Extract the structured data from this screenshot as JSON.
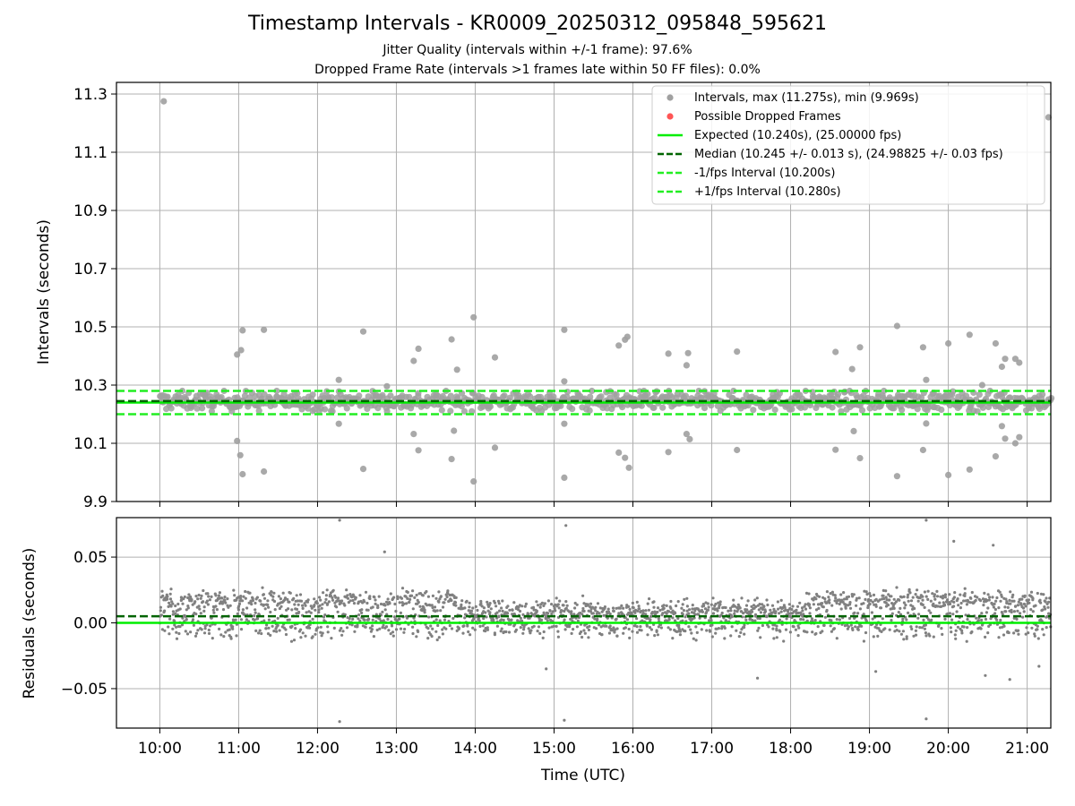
{
  "header": {
    "title": "Timestamp Intervals - KR0009_20250312_095848_595621",
    "subtitle_1": "Jitter Quality (intervals within +/-1 frame): 97.6%",
    "subtitle_2": "Dropped Frame Rate (intervals >1 frames late within 50 FF files): 0.0%"
  },
  "colors": {
    "point_gray": "#a0a0a0",
    "residual_gray": "#808080",
    "dropped_red": "#ff5555",
    "expected_green": "#00ee00",
    "median_darkgreen": "#006400",
    "interval_green": "#22ee22",
    "grid": "#b0b0b0"
  },
  "chart_data": [
    {
      "type": "scatter",
      "name": "intervals-panel",
      "ylabel": "Intervals (seconds)",
      "xlabel": "",
      "xlim_hours": [
        9.45,
        21.3
      ],
      "ylim": [
        9.9,
        11.34
      ],
      "y_ticks": [
        "11.3",
        "11.1",
        "10.9",
        "10.7",
        "10.5",
        "10.3",
        "10.1",
        "9.9"
      ],
      "y_tick_values": [
        11.3,
        11.1,
        10.9,
        10.7,
        10.5,
        10.3,
        10.1,
        9.9
      ],
      "grid": true,
      "legend_position": "top-right",
      "legend": [
        {
          "label": "Intervals, max (11.275s), min (9.969s)",
          "kind": "marker",
          "color": "#a0a0a0"
        },
        {
          "label": "Possible Dropped Frames",
          "kind": "marker",
          "color": "#ff5555"
        },
        {
          "label": "Expected (10.240s), (25.00000 fps)",
          "kind": "solid",
          "color": "#00ee00"
        },
        {
          "label": "Median (10.245 +/- 0.013 s), (24.98825 +/- 0.03 fps)",
          "kind": "dashed",
          "color": "#006400"
        },
        {
          "label": "-1/fps Interval (10.200s)",
          "kind": "dashed",
          "color": "#22ee22"
        },
        {
          "label": "+1/fps Interval (10.280s)",
          "kind": "dashed",
          "color": "#22ee22"
        }
      ],
      "reference_lines": [
        {
          "name": "expected",
          "y": 10.24,
          "style": "solid",
          "color": "#00ee00"
        },
        {
          "name": "median",
          "y": 10.245,
          "style": "dashed",
          "color": "#006400"
        },
        {
          "name": "minus-1fps",
          "y": 10.2,
          "style": "dashed",
          "color": "#22ee22"
        },
        {
          "name": "plus-1fps",
          "y": 10.28,
          "style": "dashed",
          "color": "#22ee22"
        }
      ],
      "series": [
        {
          "name": "Intervals",
          "color": "#a0a0a0",
          "band": {
            "x_start": 10.0,
            "x_end": 21.3,
            "y_center": 10.245,
            "y_spread": 0.035
          },
          "outliers": [
            [
              10.05,
              11.275
            ],
            [
              10.98,
              10.405
            ],
            [
              11.03,
              10.42
            ],
            [
              11.05,
              10.488
            ],
            [
              10.98,
              10.108
            ],
            [
              11.02,
              10.059
            ],
            [
              11.05,
              9.994
            ],
            [
              11.32,
              10.49
            ],
            [
              11.32,
              10.003
            ],
            [
              12.27,
              10.318
            ],
            [
              12.27,
              10.167
            ],
            [
              12.58,
              10.484
            ],
            [
              12.58,
              10.012
            ],
            [
              12.88,
              10.296
            ],
            [
              13.22,
              10.383
            ],
            [
              13.28,
              10.425
            ],
            [
              13.22,
              10.132
            ],
            [
              13.28,
              10.076
            ],
            [
              13.7,
              10.457
            ],
            [
              13.77,
              10.353
            ],
            [
              13.73,
              10.143
            ],
            [
              13.7,
              10.046
            ],
            [
              13.98,
              10.533
            ],
            [
              13.98,
              9.969
            ],
            [
              14.25,
              10.395
            ],
            [
              14.25,
              10.085
            ],
            [
              15.13,
              10.49
            ],
            [
              15.13,
              10.313
            ],
            [
              15.13,
              10.167
            ],
            [
              15.13,
              9.982
            ],
            [
              15.82,
              10.436
            ],
            [
              15.9,
              10.456
            ],
            [
              15.93,
              10.466
            ],
            [
              15.82,
              10.068
            ],
            [
              15.9,
              10.05
            ],
            [
              15.95,
              10.016
            ],
            [
              16.45,
              10.408
            ],
            [
              16.45,
              10.07
            ],
            [
              16.68,
              10.368
            ],
            [
              16.7,
              10.41
            ],
            [
              16.68,
              10.132
            ],
            [
              16.72,
              10.114
            ],
            [
              17.32,
              10.415
            ],
            [
              17.32,
              10.077
            ],
            [
              18.57,
              10.414
            ],
            [
              18.57,
              10.078
            ],
            [
              18.78,
              10.355
            ],
            [
              18.8,
              10.142
            ],
            [
              18.88,
              10.43
            ],
            [
              18.88,
              10.049
            ],
            [
              19.35,
              10.503
            ],
            [
              19.35,
              9.987
            ],
            [
              19.68,
              10.43
            ],
            [
              19.72,
              10.318
            ],
            [
              19.72,
              10.168
            ],
            [
              19.68,
              10.077
            ],
            [
              20.0,
              10.443
            ],
            [
              20.0,
              9.991
            ],
            [
              20.27,
              10.473
            ],
            [
              20.27,
              10.01
            ],
            [
              20.43,
              10.3
            ],
            [
              20.6,
              10.443
            ],
            [
              20.6,
              10.055
            ],
            [
              20.68,
              10.363
            ],
            [
              20.72,
              10.39
            ],
            [
              20.85,
              10.39
            ],
            [
              20.9,
              10.377
            ],
            [
              20.68,
              10.159
            ],
            [
              20.72,
              10.116
            ],
            [
              20.85,
              10.1
            ],
            [
              20.9,
              10.121
            ],
            [
              21.27,
              11.22
            ]
          ]
        }
      ]
    },
    {
      "type": "scatter",
      "name": "residuals-panel",
      "ylabel": "Residuals (seconds)",
      "xlabel": "Time (UTC)",
      "xlim_hours": [
        9.45,
        21.3
      ],
      "ylim": [
        -0.08,
        0.08
      ],
      "y_ticks": [
        "0.05",
        "0.00",
        "−0.05"
      ],
      "y_tick_values": [
        0.05,
        0.0,
        -0.05
      ],
      "x_ticks": [
        "10:00",
        "11:00",
        "12:00",
        "13:00",
        "14:00",
        "15:00",
        "16:00",
        "17:00",
        "18:00",
        "19:00",
        "20:00",
        "21:00"
      ],
      "x_tick_values": [
        10,
        11,
        12,
        13,
        14,
        15,
        16,
        17,
        18,
        19,
        20,
        21
      ],
      "grid": true,
      "reference_lines": [
        {
          "name": "zero",
          "y": 0.0,
          "style": "solid",
          "color": "#00ee00"
        },
        {
          "name": "median-offset",
          "y": 0.005,
          "style": "dashed",
          "color": "#006400"
        }
      ],
      "series": [
        {
          "name": "Residuals",
          "color": "#808080",
          "clusters": [
            {
              "y_center": 0.02,
              "y_spread": 0.008
            },
            {
              "y_center": 0.0,
              "y_spread": 0.012
            }
          ],
          "outliers": [
            [
              12.28,
              0.078
            ],
            [
              12.28,
              -0.075
            ],
            [
              15.15,
              0.074
            ],
            [
              15.13,
              -0.074
            ],
            [
              19.72,
              0.078
            ],
            [
              19.72,
              -0.073
            ],
            [
              12.85,
              0.054
            ],
            [
              20.07,
              0.062
            ],
            [
              20.57,
              0.059
            ],
            [
              17.58,
              -0.042
            ],
            [
              14.9,
              -0.035
            ],
            [
              19.08,
              -0.037
            ],
            [
              20.47,
              -0.04
            ],
            [
              20.78,
              -0.043
            ],
            [
              21.15,
              -0.033
            ]
          ]
        }
      ]
    }
  ]
}
